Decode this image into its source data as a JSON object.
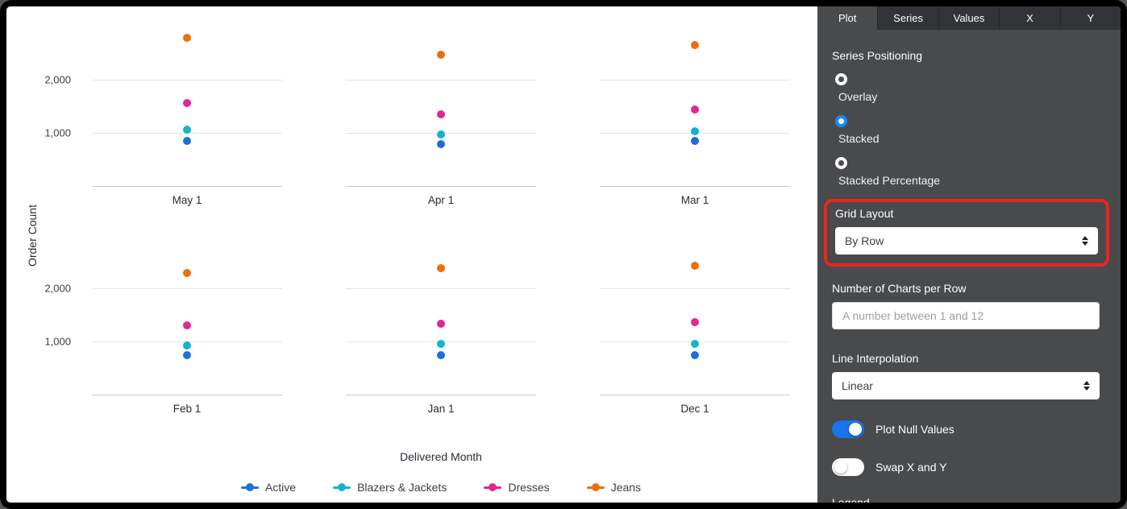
{
  "chart_data": {
    "type": "scatter",
    "layout": "small_multiples_grid",
    "rows": 2,
    "cols": 3,
    "ylabel": "Order Count",
    "xlabel": "Delivered Month",
    "ylim": [
      0,
      2900
    ],
    "yticks": [
      1000,
      2000
    ],
    "grid": true,
    "legend_position": "bottom",
    "chart_labels": [
      "May 1",
      "Apr 1",
      "Mar 1",
      "Feb 1",
      "Jan 1",
      "Dec 1"
    ],
    "series": [
      {
        "name": "Active",
        "color": "#1e6fd9",
        "values": [
          850,
          790,
          845,
          745,
          745,
          750
        ]
      },
      {
        "name": "Blazers & Jackets",
        "color": "#12b5cb",
        "values": [
          1070,
          965,
          1040,
          930,
          950,
          955
        ]
      },
      {
        "name": "Dresses",
        "color": "#e52592",
        "values": [
          1560,
          1345,
          1440,
          1310,
          1330,
          1365
        ]
      },
      {
        "name": "Jeans",
        "color": "#e8710a",
        "values": [
          2790,
          2480,
          2650,
          2290,
          2390,
          2430
        ]
      }
    ]
  },
  "panel": {
    "tabs": [
      {
        "label": "Plot",
        "active": true
      },
      {
        "label": "Series",
        "active": false
      },
      {
        "label": "Values",
        "active": false
      },
      {
        "label": "X",
        "active": false
      },
      {
        "label": "Y",
        "active": false
      }
    ],
    "series_positioning": {
      "label": "Series Positioning",
      "options": [
        {
          "label": "Overlay",
          "selected": false
        },
        {
          "label": "Stacked",
          "selected": true
        },
        {
          "label": "Stacked Percentage",
          "selected": false
        }
      ]
    },
    "grid_layout": {
      "label": "Grid Layout",
      "value": "By Row",
      "highlighted": true
    },
    "charts_per_row": {
      "label": "Number of Charts per Row",
      "value": "",
      "placeholder": "A number between 1 and 12"
    },
    "line_interpolation": {
      "label": "Line Interpolation",
      "value": "Linear"
    },
    "toggles": [
      {
        "label": "Plot Null Values",
        "on": true
      },
      {
        "label": "Swap X and Y",
        "on": false
      }
    ],
    "next_section_label": "Legend",
    "colors": {
      "accent_blue": "#1a73e8",
      "annotation_red": "#e8261e",
      "panel_bg": "#494a4c",
      "tabbar_bg": "#323336"
    }
  }
}
